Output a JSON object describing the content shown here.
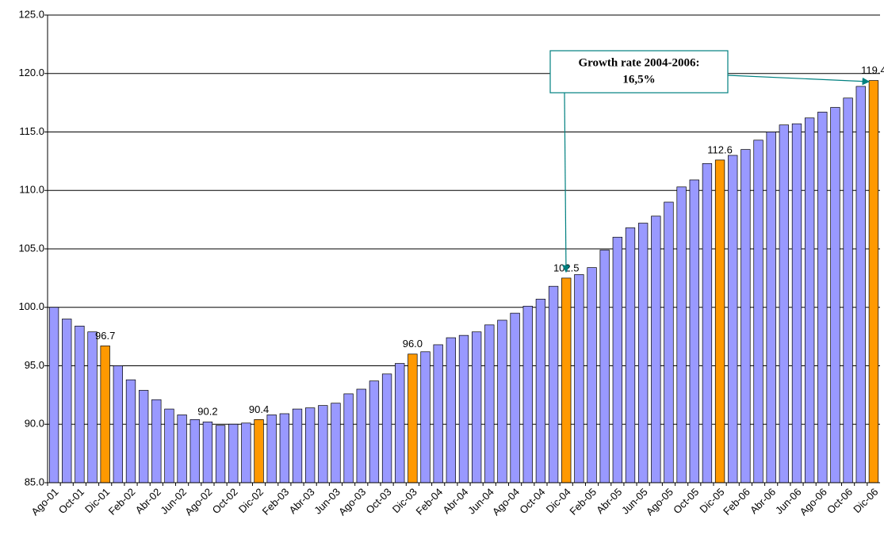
{
  "chart_data": {
    "type": "bar",
    "categories": [
      "Ago-01",
      null,
      "Oct-01",
      null,
      "Dic-01",
      null,
      "Feb-02",
      null,
      "Abr-02",
      null,
      "Jun-02",
      null,
      "Ago-02",
      null,
      "Oct-02",
      null,
      "Dic-02",
      null,
      "Feb-03",
      null,
      "Abr-03",
      null,
      "Jun-03",
      null,
      "Ago-03",
      null,
      "Oct-03",
      null,
      "Dic-03",
      null,
      "Feb-04",
      null,
      "Abr-04",
      null,
      "Jun-04",
      null,
      "Ago-04",
      null,
      "Oct-04",
      null,
      "Dic-04",
      null,
      "Feb-05",
      null,
      "Abr-05",
      null,
      "Jun-05",
      null,
      "Ago-05",
      null,
      "Oct-05",
      null,
      "Dic-05",
      null,
      "Feb-06",
      null,
      "Abr-06",
      null,
      "Jun-06",
      null,
      "Ago-06",
      null,
      "Oct-06",
      null,
      "Dic-06"
    ],
    "values": [
      100.0,
      99.0,
      98.4,
      97.9,
      96.7,
      95.0,
      93.8,
      92.9,
      92.1,
      91.3,
      90.8,
      90.4,
      90.2,
      89.9,
      90.0,
      90.1,
      90.4,
      90.8,
      90.9,
      91.3,
      91.4,
      91.6,
      91.8,
      92.6,
      93.0,
      93.7,
      94.3,
      95.2,
      96.0,
      96.2,
      96.8,
      97.4,
      97.6,
      97.9,
      98.5,
      98.9,
      99.5,
      100.1,
      100.7,
      101.8,
      102.5,
      102.8,
      103.4,
      104.9,
      106.0,
      106.8,
      107.2,
      107.8,
      109.0,
      110.3,
      110.9,
      112.3,
      112.6,
      113.0,
      113.5,
      114.3,
      115.0,
      115.6,
      115.7,
      116.2,
      116.7,
      117.1,
      117.9,
      118.9,
      119.4
    ],
    "value_labels": [
      null,
      null,
      null,
      null,
      "96.7",
      null,
      null,
      null,
      null,
      null,
      null,
      null,
      "90.2",
      null,
      null,
      null,
      "90.4",
      null,
      null,
      null,
      null,
      null,
      null,
      null,
      null,
      null,
      null,
      null,
      "96.0",
      null,
      null,
      null,
      null,
      null,
      null,
      null,
      null,
      null,
      null,
      null,
      "102.5",
      null,
      null,
      null,
      null,
      null,
      null,
      null,
      null,
      null,
      null,
      null,
      "112.6",
      null,
      null,
      null,
      null,
      null,
      null,
      null,
      null,
      null,
      null,
      null,
      "119.4"
    ],
    "colors": [
      "#9999ff",
      "#9999ff",
      "#9999ff",
      "#9999ff",
      "#ff9900",
      "#9999ff",
      "#9999ff",
      "#9999ff",
      "#9999ff",
      "#9999ff",
      "#9999ff",
      "#9999ff",
      "#9999ff",
      "#9999ff",
      "#9999ff",
      "#9999ff",
      "#ff9900",
      "#9999ff",
      "#9999ff",
      "#9999ff",
      "#9999ff",
      "#9999ff",
      "#9999ff",
      "#9999ff",
      "#9999ff",
      "#9999ff",
      "#9999ff",
      "#9999ff",
      "#ff9900",
      "#9999ff",
      "#9999ff",
      "#9999ff",
      "#9999ff",
      "#9999ff",
      "#9999ff",
      "#9999ff",
      "#9999ff",
      "#9999ff",
      "#9999ff",
      "#9999ff",
      "#ff9900",
      "#9999ff",
      "#9999ff",
      "#9999ff",
      "#9999ff",
      "#9999ff",
      "#9999ff",
      "#9999ff",
      "#9999ff",
      "#9999ff",
      "#9999ff",
      "#9999ff",
      "#ff9900",
      "#9999ff",
      "#9999ff",
      "#9999ff",
      "#9999ff",
      "#9999ff",
      "#9999ff",
      "#9999ff",
      "#9999ff",
      "#9999ff",
      "#9999ff",
      "#9999ff",
      "#ff9900"
    ],
    "ylim": [
      85,
      125
    ],
    "yticks": [
      {
        "value": 85,
        "label": "85.0"
      },
      {
        "value": 90,
        "label": "90.0"
      },
      {
        "value": 95,
        "label": "95.0"
      },
      {
        "value": 100,
        "label": "100.0"
      },
      {
        "value": 105,
        "label": "105.0"
      },
      {
        "value": 110,
        "label": "110.0"
      },
      {
        "value": 115,
        "label": "115.0"
      },
      {
        "value": 120,
        "label": "120.0"
      },
      {
        "value": 125,
        "label": "125.0"
      }
    ],
    "grid": true,
    "annotation": [
      "Growth rate 2004-2006:",
      "16,5%"
    ]
  }
}
